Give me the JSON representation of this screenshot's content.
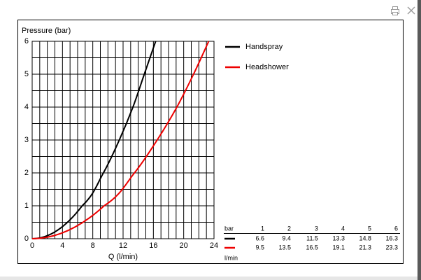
{
  "chart_data": {
    "type": "line",
    "ylabel": "Pressure (bar)",
    "xlabel": "Q (l/min)",
    "xlim": [
      0,
      24
    ],
    "xticks": [
      0,
      4,
      8,
      12,
      16,
      20,
      24
    ],
    "ylim": [
      0,
      6
    ],
    "yticks": [
      0,
      1,
      2,
      3,
      4,
      5,
      6
    ],
    "grid": true,
    "pressures": [
      1,
      2,
      3,
      4,
      5,
      6
    ],
    "table_header": "bar",
    "table_unit": "l/min",
    "series": [
      {
        "name": "Handspray",
        "color": "#000000",
        "values": [
          6.6,
          9.4,
          11.5,
          13.3,
          14.8,
          16.3
        ]
      },
      {
        "name": "Headshower",
        "color": "#ee0000",
        "values": [
          9.5,
          13.5,
          16.5,
          19.1,
          21.3,
          23.3
        ]
      }
    ]
  }
}
